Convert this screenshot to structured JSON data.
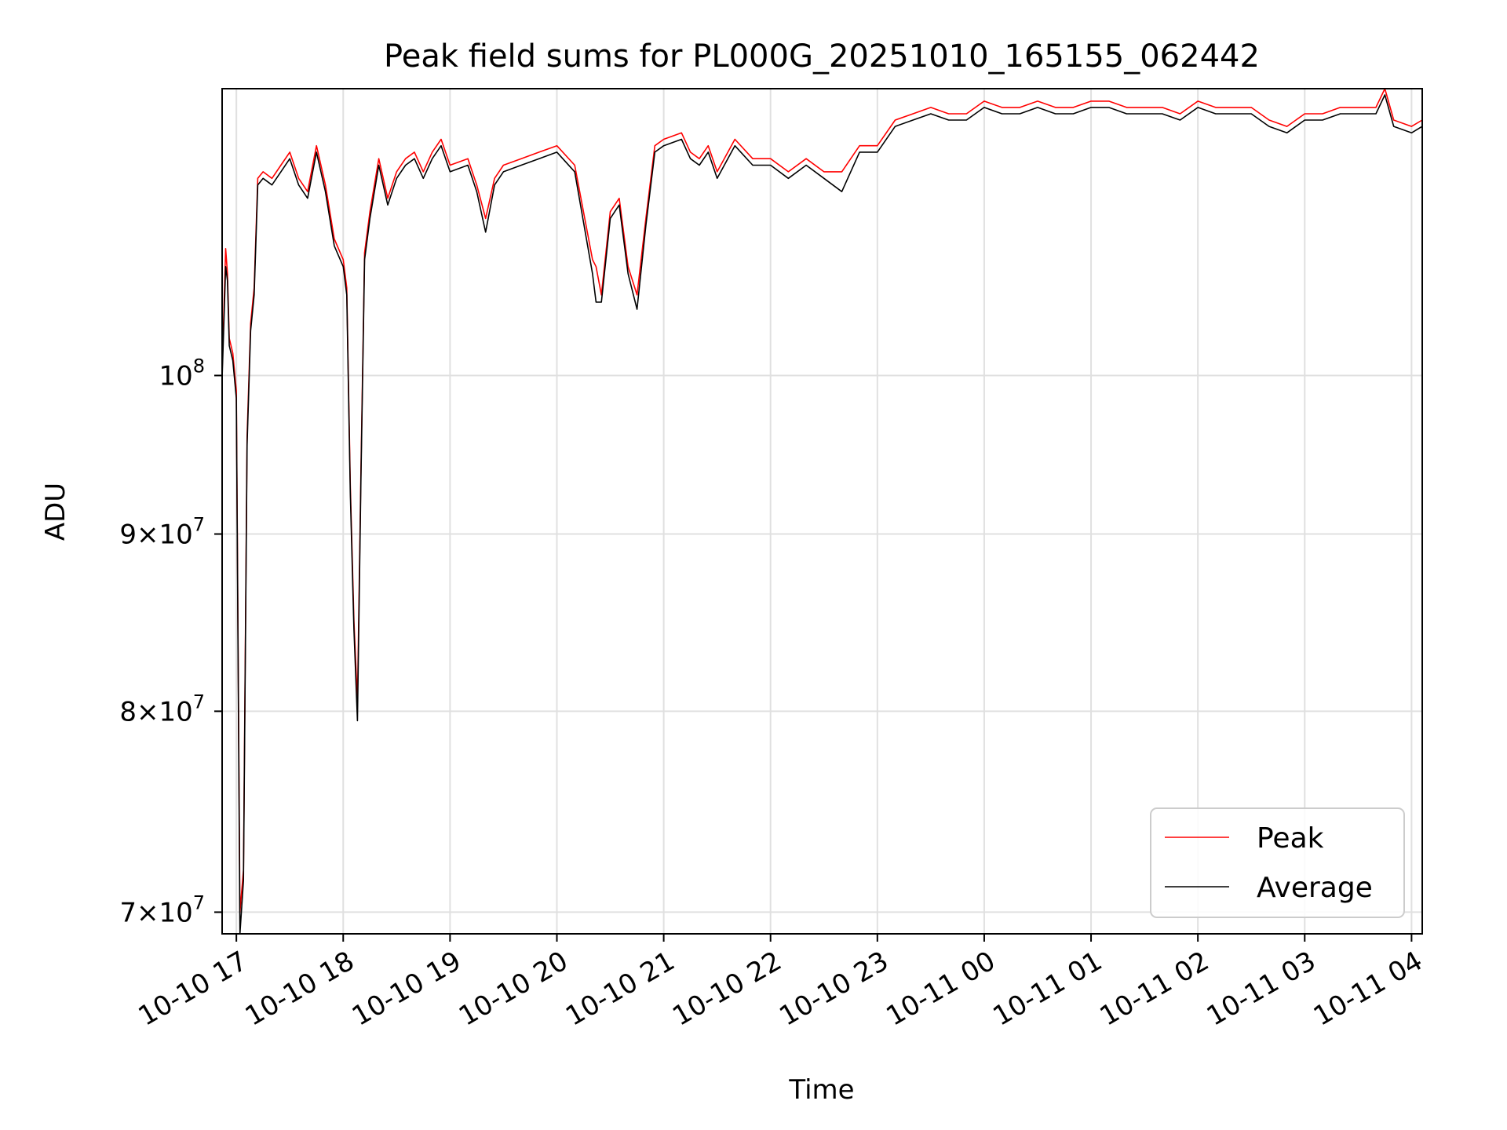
{
  "chart_data": {
    "type": "line",
    "title": "Peak field sums for PL000G_20251010_165155_062442",
    "xlabel": "Time",
    "ylabel": "ADU",
    "y_scale": "log",
    "ylim": [
      69000000,
      121000000
    ],
    "xlim": [
      "2025-10-10 16:52",
      "2025-10-11 04:06"
    ],
    "grid": true,
    "legend": {
      "position": "lower-right",
      "entries": [
        "Peak",
        "Average"
      ]
    },
    "x_ticks": [
      {
        "value": "2025-10-10 17:00",
        "label": "10-10 17"
      },
      {
        "value": "2025-10-10 18:00",
        "label": "10-10 18"
      },
      {
        "value": "2025-10-10 19:00",
        "label": "10-10 19"
      },
      {
        "value": "2025-10-10 20:00",
        "label": "10-10 20"
      },
      {
        "value": "2025-10-10 21:00",
        "label": "10-10 21"
      },
      {
        "value": "2025-10-10 22:00",
        "label": "10-10 22"
      },
      {
        "value": "2025-10-10 23:00",
        "label": "10-10 23"
      },
      {
        "value": "2025-10-11 00:00",
        "label": "10-11 00"
      },
      {
        "value": "2025-10-11 01:00",
        "label": "10-11 01"
      },
      {
        "value": "2025-10-11 02:00",
        "label": "10-11 02"
      },
      {
        "value": "2025-10-11 03:00",
        "label": "10-11 03"
      },
      {
        "value": "2025-10-11 04:00",
        "label": "10-11 04"
      }
    ],
    "y_ticks": [
      {
        "value": 70000000,
        "mant": "7",
        "exp": "7"
      },
      {
        "value": 80000000,
        "mant": "8",
        "exp": "7"
      },
      {
        "value": 90000000,
        "mant": "9",
        "exp": "7"
      },
      {
        "value": 100000000,
        "mant": "",
        "exp": "8"
      }
    ],
    "series": [
      {
        "name": "Peak",
        "color": "#ff0000",
        "x": [
          "2025-10-10 16:52",
          "2025-10-10 16:54",
          "2025-10-10 16:55",
          "2025-10-10 16:56",
          "2025-10-10 16:58",
          "2025-10-10 17:00",
          "2025-10-10 17:02",
          "2025-10-10 17:04",
          "2025-10-10 17:06",
          "2025-10-10 17:08",
          "2025-10-10 17:10",
          "2025-10-10 17:12",
          "2025-10-10 17:15",
          "2025-10-10 17:20",
          "2025-10-10 17:25",
          "2025-10-10 17:30",
          "2025-10-10 17:35",
          "2025-10-10 17:40",
          "2025-10-10 17:45",
          "2025-10-10 17:50",
          "2025-10-10 17:55",
          "2025-10-10 18:00",
          "2025-10-10 18:02",
          "2025-10-10 18:04",
          "2025-10-10 18:06",
          "2025-10-10 18:08",
          "2025-10-10 18:10",
          "2025-10-10 18:12",
          "2025-10-10 18:15",
          "2025-10-10 18:20",
          "2025-10-10 18:25",
          "2025-10-10 18:30",
          "2025-10-10 18:35",
          "2025-10-10 18:40",
          "2025-10-10 18:45",
          "2025-10-10 18:50",
          "2025-10-10 18:55",
          "2025-10-10 19:00",
          "2025-10-10 19:10",
          "2025-10-10 19:15",
          "2025-10-10 19:20",
          "2025-10-10 19:25",
          "2025-10-10 19:30",
          "2025-10-10 19:40",
          "2025-10-10 19:50",
          "2025-10-10 20:00",
          "2025-10-10 20:10",
          "2025-10-10 20:20",
          "2025-10-10 20:22",
          "2025-10-10 20:25",
          "2025-10-10 20:30",
          "2025-10-10 20:35",
          "2025-10-10 20:40",
          "2025-10-10 20:45",
          "2025-10-10 20:50",
          "2025-10-10 20:55",
          "2025-10-10 21:00",
          "2025-10-10 21:10",
          "2025-10-10 21:15",
          "2025-10-10 21:20",
          "2025-10-10 21:25",
          "2025-10-10 21:30",
          "2025-10-10 21:40",
          "2025-10-10 21:50",
          "2025-10-10 22:00",
          "2025-10-10 22:10",
          "2025-10-10 22:20",
          "2025-10-10 22:30",
          "2025-10-10 22:40",
          "2025-10-10 22:50",
          "2025-10-10 23:00",
          "2025-10-10 23:10",
          "2025-10-10 23:20",
          "2025-10-10 23:30",
          "2025-10-10 23:40",
          "2025-10-10 23:50",
          "2025-10-11 00:00",
          "2025-10-11 00:10",
          "2025-10-11 00:20",
          "2025-10-11 00:30",
          "2025-10-11 00:40",
          "2025-10-11 00:50",
          "2025-10-11 01:00",
          "2025-10-11 01:10",
          "2025-10-11 01:20",
          "2025-10-11 01:30",
          "2025-10-11 01:40",
          "2025-10-11 01:50",
          "2025-10-11 02:00",
          "2025-10-11 02:10",
          "2025-10-11 02:20",
          "2025-10-11 02:30",
          "2025-10-11 02:40",
          "2025-10-11 02:50",
          "2025-10-11 03:00",
          "2025-10-11 03:10",
          "2025-10-11 03:20",
          "2025-10-11 03:30",
          "2025-10-11 03:40",
          "2025-10-11 03:45",
          "2025-10-11 03:50",
          "2025-10-11 04:00",
          "2025-10-11 04:06"
        ],
        "y": [
          100200000,
          108800000,
          107000000,
          102500000,
          101500000,
          99000000,
          70000000,
          72000000,
          96000000,
          103500000,
          106000000,
          114000000,
          114500000,
          114000000,
          115000000,
          116000000,
          114000000,
          113000000,
          116500000,
          113500000,
          109500000,
          108000000,
          106000000,
          93000000,
          85000000,
          80500000,
          94000000,
          108500000,
          111500000,
          115500000,
          112500000,
          114500000,
          115500000,
          116000000,
          114500000,
          116000000,
          117000000,
          115000000,
          115500000,
          113500000,
          111000000,
          114000000,
          115000000,
          115500000,
          116000000,
          116500000,
          115000000,
          108000000,
          107500000,
          105500000,
          111500000,
          112500000,
          107500000,
          105500000,
          111000000,
          116500000,
          117000000,
          117500000,
          116000000,
          115500000,
          116500000,
          114500000,
          117000000,
          115500000,
          115500000,
          114500000,
          115500000,
          114500000,
          114500000,
          116500000,
          116500000,
          118500000,
          119000000,
          119500000,
          119000000,
          119000000,
          120000000,
          119500000,
          119500000,
          120000000,
          119500000,
          119500000,
          120000000,
          120000000,
          119500000,
          119500000,
          119500000,
          119000000,
          120000000,
          119500000,
          119500000,
          119500000,
          118500000,
          118000000,
          119000000,
          119000000,
          119500000,
          119500000,
          119500000,
          121000000,
          118500000,
          118000000,
          118500000
        ]
      },
      {
        "name": "Average",
        "color": "#000000",
        "x": [
          "2025-10-10 16:52",
          "2025-10-10 16:54",
          "2025-10-10 16:55",
          "2025-10-10 16:56",
          "2025-10-10 16:58",
          "2025-10-10 17:00",
          "2025-10-10 17:02",
          "2025-10-10 17:04",
          "2025-10-10 17:06",
          "2025-10-10 17:08",
          "2025-10-10 17:10",
          "2025-10-10 17:12",
          "2025-10-10 17:15",
          "2025-10-10 17:20",
          "2025-10-10 17:25",
          "2025-10-10 17:30",
          "2025-10-10 17:35",
          "2025-10-10 17:40",
          "2025-10-10 17:45",
          "2025-10-10 17:50",
          "2025-10-10 17:55",
          "2025-10-10 18:00",
          "2025-10-10 18:02",
          "2025-10-10 18:04",
          "2025-10-10 18:06",
          "2025-10-10 18:08",
          "2025-10-10 18:10",
          "2025-10-10 18:12",
          "2025-10-10 18:15",
          "2025-10-10 18:20",
          "2025-10-10 18:25",
          "2025-10-10 18:30",
          "2025-10-10 18:35",
          "2025-10-10 18:40",
          "2025-10-10 18:45",
          "2025-10-10 18:50",
          "2025-10-10 18:55",
          "2025-10-10 19:00",
          "2025-10-10 19:10",
          "2025-10-10 19:15",
          "2025-10-10 19:20",
          "2025-10-10 19:25",
          "2025-10-10 19:30",
          "2025-10-10 19:40",
          "2025-10-10 19:50",
          "2025-10-10 20:00",
          "2025-10-10 20:10",
          "2025-10-10 20:20",
          "2025-10-10 20:22",
          "2025-10-10 20:25",
          "2025-10-10 20:30",
          "2025-10-10 20:35",
          "2025-10-10 20:40",
          "2025-10-10 20:45",
          "2025-10-10 20:50",
          "2025-10-10 20:55",
          "2025-10-10 21:00",
          "2025-10-10 21:10",
          "2025-10-10 21:15",
          "2025-10-10 21:20",
          "2025-10-10 21:25",
          "2025-10-10 21:30",
          "2025-10-10 21:40",
          "2025-10-10 21:50",
          "2025-10-10 22:00",
          "2025-10-10 22:10",
          "2025-10-10 22:20",
          "2025-10-10 22:30",
          "2025-10-10 22:40",
          "2025-10-10 22:50",
          "2025-10-10 23:00",
          "2025-10-10 23:10",
          "2025-10-10 23:20",
          "2025-10-10 23:30",
          "2025-10-10 23:40",
          "2025-10-10 23:50",
          "2025-10-11 00:00",
          "2025-10-11 00:10",
          "2025-10-11 00:20",
          "2025-10-11 00:30",
          "2025-10-11 00:40",
          "2025-10-11 00:50",
          "2025-10-11 01:00",
          "2025-10-11 01:10",
          "2025-10-11 01:20",
          "2025-10-11 01:30",
          "2025-10-11 01:40",
          "2025-10-11 01:50",
          "2025-10-11 02:00",
          "2025-10-11 02:10",
          "2025-10-11 02:20",
          "2025-10-11 02:30",
          "2025-10-11 02:40",
          "2025-10-11 02:50",
          "2025-10-11 03:00",
          "2025-10-11 03:10",
          "2025-10-11 03:20",
          "2025-10-11 03:30",
          "2025-10-11 03:40",
          "2025-10-11 03:45",
          "2025-10-11 03:50",
          "2025-10-11 04:00",
          "2025-10-11 04:06"
        ],
        "y": [
          99800000,
          107500000,
          106500000,
          102000000,
          101000000,
          98500000,
          69000000,
          71500000,
          95500000,
          103000000,
          105500000,
          113500000,
          114000000,
          113500000,
          114500000,
          115500000,
          113500000,
          112500000,
          116000000,
          113000000,
          109000000,
          107500000,
          105500000,
          92500000,
          84500000,
          79500000,
          93500000,
          108000000,
          111000000,
          115000000,
          112000000,
          114000000,
          115000000,
          115500000,
          114000000,
          115500000,
          116500000,
          114500000,
          115000000,
          113000000,
          110000000,
          113500000,
          114500000,
          115000000,
          115500000,
          116000000,
          114500000,
          107000000,
          105000000,
          105000000,
          111000000,
          112000000,
          107000000,
          104500000,
          110500000,
          116000000,
          116500000,
          117000000,
          115500000,
          115000000,
          116000000,
          114000000,
          116500000,
          115000000,
          115000000,
          114000000,
          115000000,
          114000000,
          113000000,
          116000000,
          116000000,
          118000000,
          118500000,
          119000000,
          118500000,
          118500000,
          119500000,
          119000000,
          119000000,
          119500000,
          119000000,
          119000000,
          119500000,
          119500000,
          119000000,
          119000000,
          119000000,
          118500000,
          119500000,
          119000000,
          119000000,
          119000000,
          118000000,
          117500000,
          118500000,
          118500000,
          119000000,
          119000000,
          119000000,
          120500000,
          118000000,
          117500000,
          118000000
        ]
      }
    ]
  }
}
